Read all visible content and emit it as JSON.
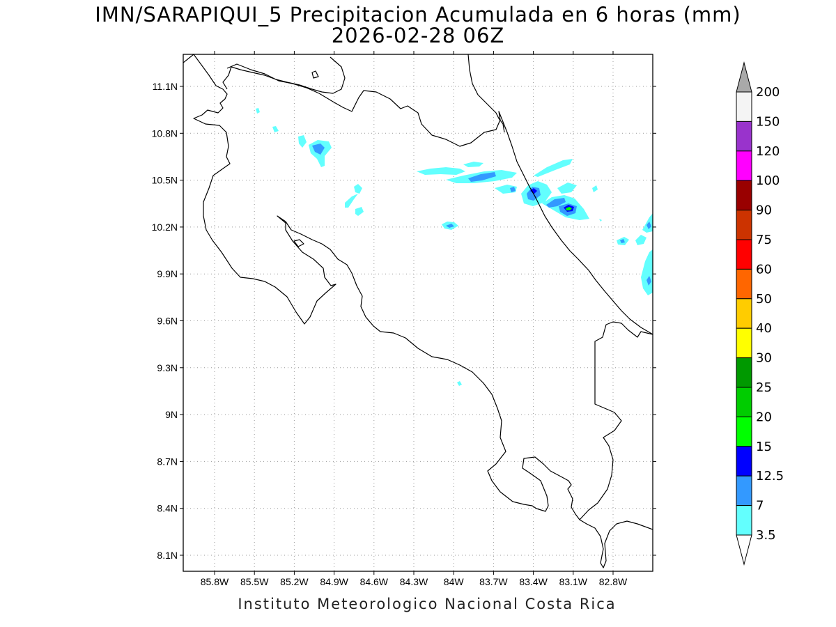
{
  "title_line1": "IMN/SARAPIQUI_5 Precipitacion Acumulada en 6 horas (mm)",
  "title_line2": "2026-02-28 06Z",
  "footer": "Instituto Meteorologico Nacional Costa Rica",
  "map": {
    "lon_labels": [
      "85.8W",
      "85.5W",
      "85.2W",
      "84.9W",
      "84.6W",
      "84.3W",
      "84W",
      "83.7W",
      "83.4W",
      "83.1W",
      "82.8W"
    ],
    "lat_labels": [
      "11.1N",
      "10.8N",
      "10.5N",
      "10.2N",
      "9.9N",
      "9.6N",
      "9.3N",
      "9N",
      "8.7N",
      "8.4N",
      "8.1N"
    ],
    "grid": "dotted"
  },
  "colorbar": {
    "labels": [
      "3.5",
      "7",
      "12.5",
      "15",
      "20",
      "25",
      "30",
      "40",
      "50",
      "60",
      "75",
      "90",
      "100",
      "120",
      "150",
      "200"
    ],
    "colors": [
      "#63fffe",
      "#3399ff",
      "#0000ff",
      "#00ff00",
      "#00cc00",
      "#009900",
      "#ffff00",
      "#ffcc00",
      "#ff6600",
      "#ff0000",
      "#cc3300",
      "#990000",
      "#ff00ff",
      "#9933cc",
      "#f4f4f4"
    ],
    "over_color": "#a9a9a9",
    "under_color": "#ffffff"
  }
}
